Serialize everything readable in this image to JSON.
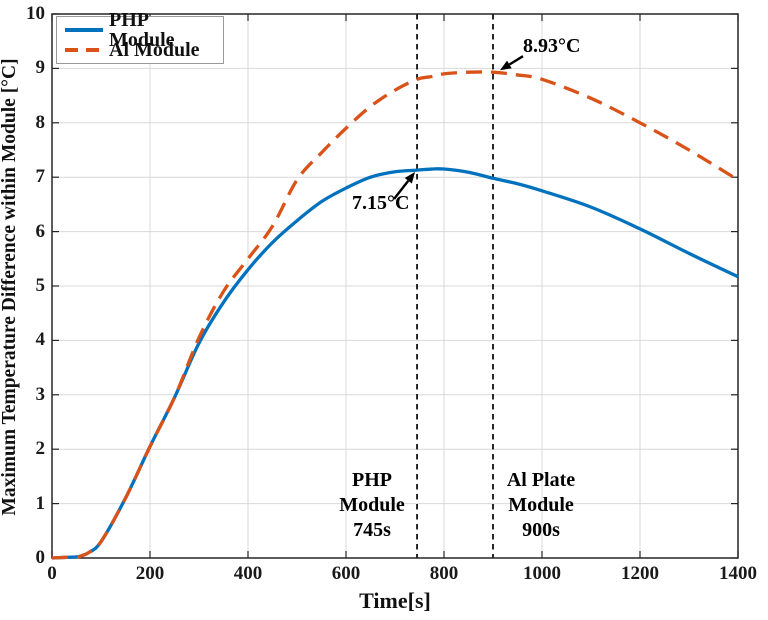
{
  "chart_data": {
    "type": "line",
    "title": "",
    "xlabel": "Time[s]",
    "ylabel": "Maximum Temperature Difference within Module [°C]",
    "xlim": [
      0,
      1400
    ],
    "ylim": [
      0,
      10
    ],
    "xticks": [
      0,
      200,
      400,
      600,
      800,
      1000,
      1200,
      1400
    ],
    "yticks": [
      0,
      1,
      2,
      3,
      4,
      5,
      6,
      7,
      8,
      9,
      10
    ],
    "grid": true,
    "legend_position": "top-left",
    "x": [
      0,
      25,
      50,
      60,
      75,
      100,
      150,
      200,
      250,
      300,
      350,
      400,
      450,
      500,
      550,
      600,
      650,
      700,
      745,
      775,
      800,
      850,
      900,
      950,
      1000,
      1100,
      1200,
      1300,
      1400
    ],
    "series": [
      {
        "name": "PHP Module",
        "color": "#0072BD",
        "line_style": "solid",
        "values": [
          0,
          0.01,
          0.02,
          0.04,
          0.1,
          0.3,
          1.1,
          2.05,
          2.95,
          3.95,
          4.7,
          5.3,
          5.8,
          6.2,
          6.55,
          6.8,
          7.0,
          7.1,
          7.13,
          7.15,
          7.15,
          7.09,
          6.98,
          6.88,
          6.75,
          6.45,
          6.05,
          5.6,
          5.17
        ]
      },
      {
        "name": "Al Module",
        "color": "#D95319",
        "line_style": "dashed",
        "values": [
          0,
          0.01,
          0.02,
          0.04,
          0.1,
          0.3,
          1.1,
          2.05,
          2.95,
          4.05,
          4.9,
          5.5,
          6.1,
          6.95,
          7.45,
          7.9,
          8.3,
          8.6,
          8.8,
          8.85,
          8.9,
          8.93,
          8.93,
          8.88,
          8.8,
          8.45,
          8.0,
          7.5,
          6.95
        ]
      }
    ],
    "annotations": {
      "peaks": [
        {
          "label": "7.15°C",
          "series": "PHP Module",
          "t": 745,
          "value": 7.15
        },
        {
          "label": "8.93°C",
          "series": "Al Module",
          "t": 900,
          "value": 8.93
        }
      ],
      "vlines": [
        {
          "t": 745,
          "lines": [
            "PHP",
            "Module",
            "745s"
          ]
        },
        {
          "t": 900,
          "lines": [
            "Al Plate",
            "Module",
            "900s"
          ]
        }
      ]
    },
    "colors": {
      "axis": "#262626",
      "grid": "#d9d9d9",
      "vline": "#111111",
      "annotation": "#000000"
    }
  }
}
